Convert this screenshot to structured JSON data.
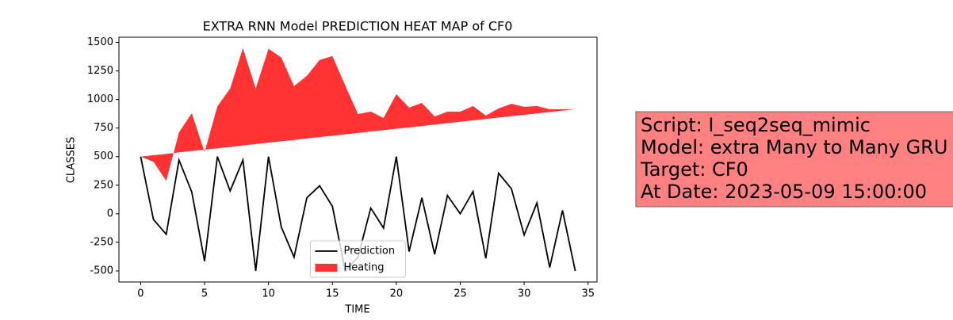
{
  "chart_data": {
    "type": "line-fill",
    "title": "EXTRA RNN Model PREDICTION HEAT MAP of CF0",
    "xlabel": "TIME",
    "ylabel": "CLASSES",
    "x": [
      0,
      1,
      2,
      3,
      4,
      5,
      6,
      7,
      8,
      9,
      10,
      11,
      12,
      13,
      14,
      15,
      16,
      17,
      18,
      19,
      20,
      21,
      22,
      23,
      24,
      25,
      26,
      27,
      28,
      29,
      30,
      31,
      32,
      33,
      34
    ],
    "series": [
      {
        "name": "Prediction",
        "color": "#000000",
        "kind": "line",
        "values": [
          500,
          -50,
          -180,
          470,
          190,
          -415,
          500,
          200,
          470,
          -500,
          500,
          -115,
          -380,
          140,
          245,
          65,
          -500,
          -380,
          50,
          -125,
          500,
          -330,
          140,
          -355,
          160,
          0,
          195,
          -390,
          355,
          220,
          -185,
          95,
          -470,
          30,
          -500
        ]
      },
      {
        "name": "Heating",
        "color": "#ff3333",
        "kind": "fill",
        "values": [
          500,
          455,
          288,
          713,
          880,
          540,
          940,
          1096,
          1450,
          1096,
          1444,
          1368,
          1117,
          1207,
          1347,
          1380,
          1124,
          873,
          894,
          838,
          1047,
          929,
          970,
          852,
          894,
          894,
          943,
          860,
          922,
          963,
          936,
          943,
          915,
          915,
          915
        ],
        "lower": [
          500,
          512,
          524,
          537,
          549,
          561,
          573,
          585,
          598,
          610,
          622,
          634,
          646,
          659,
          671,
          683,
          695,
          707,
          720,
          732,
          744,
          756,
          768,
          781,
          793,
          805,
          817,
          829,
          842,
          854,
          866,
          878,
          890,
          903,
          915
        ]
      }
    ],
    "xlim": [
      -1.7,
      35.7
    ],
    "xticks": [
      0,
      5,
      10,
      15,
      20,
      25,
      30,
      35
    ],
    "ylim": [
      -597,
      1545
    ],
    "yticks": [
      -500,
      -250,
      0,
      250,
      500,
      750,
      1000,
      1250,
      1500
    ],
    "legend": "lower center",
    "annotation": [
      "Script: I_seq2seq_mimic",
      "Model: extra Many to Many GRU",
      "Target: CF0",
      "At Date: 2023-05-09 15:00:00"
    ]
  }
}
